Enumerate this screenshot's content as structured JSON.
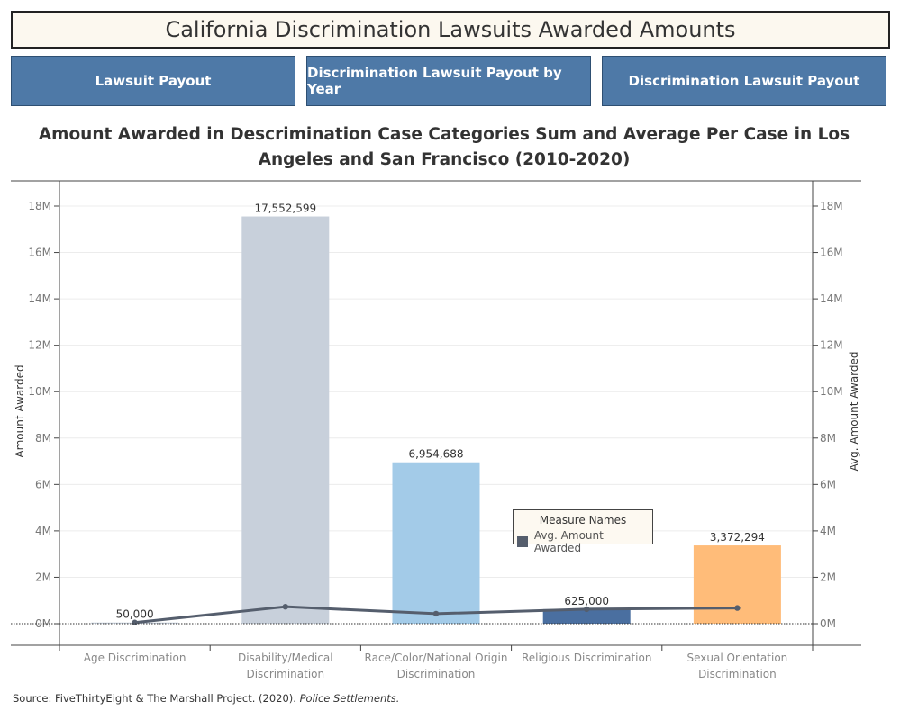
{
  "header": {
    "title": "California Discrimination Lawsuits Awarded Amounts"
  },
  "nav": {
    "buttons": [
      "Lawsuit Payout",
      "Discrimination Lawsuit Payout by Year",
      "Discrimination Lawsuit Payout"
    ]
  },
  "source": {
    "prefix": "Source: FiveThirtyEight & The Marshall Project. (2020). ",
    "italic": "Police Settlements."
  },
  "legend": {
    "title": "Measure Names",
    "item": "Avg. Amount Awarded",
    "color": "#555e6d"
  },
  "chart_data": {
    "type": "bar",
    "title": "Amount Awarded in Descrimination Case Categories Sum and Average Per Case in Los Angeles and San Francisco (2010-2020)",
    "ylabel": "Amount Awarded",
    "y2label": "Avg. Amount Awarded",
    "ylim": [
      0,
      19000000
    ],
    "yticks": [
      0,
      2000000,
      4000000,
      6000000,
      8000000,
      10000000,
      12000000,
      14000000,
      16000000,
      18000000
    ],
    "ytick_labels": [
      "0M",
      "2M",
      "4M",
      "6M",
      "8M",
      "10M",
      "12M",
      "14M",
      "16M",
      "18M"
    ],
    "categories": [
      [
        "Age Discrimination"
      ],
      [
        "Disability/Medical",
        "Discrimination"
      ],
      [
        "Race/Color/National Origin",
        "Discrimination"
      ],
      [
        "Religious Discrimination"
      ],
      [
        "Sexual Orientation",
        "Discrimination"
      ]
    ],
    "series": [
      {
        "name": "Amount Awarded",
        "values": [
          50000,
          17552599,
          6954688,
          625000,
          3372294
        ],
        "labels": [
          "50,000",
          "17,552,599",
          "6,954,688",
          "625,000",
          "3,372,294"
        ],
        "colors": [
          "#c9d1dc",
          "#c8d0db",
          "#a3cbe8",
          "#4a6fa0",
          "#ffbc79"
        ]
      },
      {
        "name": "Avg. Amount Awarded",
        "values": [
          50000,
          730000,
          430000,
          625000,
          675000
        ]
      }
    ],
    "grid": true
  }
}
